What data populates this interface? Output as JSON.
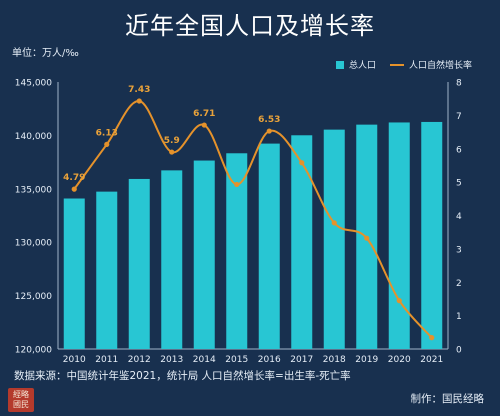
{
  "title": "近年全国人口及增长率",
  "unit_label": "单位：万人/‰",
  "legend": {
    "bars": "总人口",
    "line": "人口自然增长率"
  },
  "source_note": "数据来源：中国统计年鉴2021，统计局  人口自然增长率=出生率-死亡率",
  "producer_note": "制作：国民经略",
  "seal_text": "经略国民",
  "colors": {
    "bar": "#28c6d3",
    "line": "#e5922b",
    "background": "#18304f"
  },
  "chart_data": {
    "type": "bar",
    "categories": [
      "2010",
      "2011",
      "2012",
      "2013",
      "2014",
      "2015",
      "2016",
      "2017",
      "2018",
      "2019",
      "2020",
      "2021"
    ],
    "series": [
      {
        "name": "总人口",
        "type": "bar",
        "axis": "left",
        "values": [
          134091,
          134735,
          135922,
          136726,
          137646,
          138326,
          139232,
          140011,
          140541,
          141008,
          141212,
          141260
        ]
      },
      {
        "name": "人口自然增长率",
        "type": "line",
        "axis": "right",
        "values": [
          4.79,
          6.13,
          7.43,
          5.9,
          6.71,
          4.93,
          6.53,
          5.58,
          3.78,
          3.32,
          1.45,
          0.34
        ]
      }
    ],
    "point_labels": [
      "4.79",
      "6.13",
      "7.43",
      "5.9",
      "6.71",
      "",
      "6.53",
      "",
      "",
      "",
      "",
      ""
    ],
    "ylim_left": [
      120000,
      145000
    ],
    "yticks_left": [
      "120,000",
      "125,000",
      "130,000",
      "135,000",
      "140,000",
      "145,000"
    ],
    "ylim_right": [
      0,
      8
    ],
    "yticks_right": [
      "0",
      "1",
      "2",
      "3",
      "4",
      "5",
      "6",
      "7",
      "8"
    ],
    "legend_position": "top-right",
    "grid": false
  }
}
